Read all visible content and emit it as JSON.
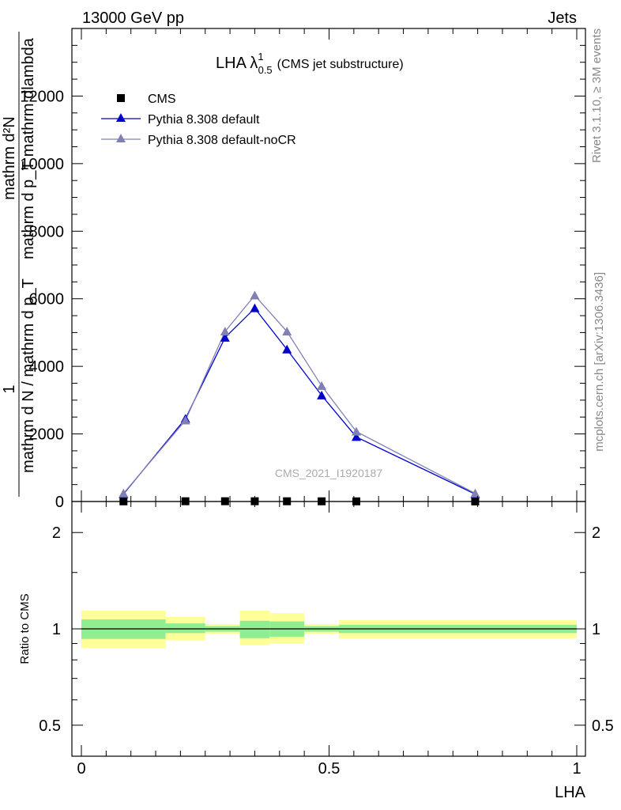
{
  "header": {
    "left": "13000 GeV pp",
    "right": "Jets"
  },
  "side": {
    "rivet": "Rivet 3.1.10, ≥ 3M events",
    "mcplots": "mcplots.cern.ch [arXiv:1306.3436]"
  },
  "chart_data": {
    "type": "line",
    "title_main": "LHA λ",
    "title_sup": "1",
    "title_sub": "0.5",
    "title_rest": "(CMS jet substructure)",
    "watermark": "CMS_2021_I1920187",
    "ylabel_top": "mathrm d²N",
    "ylabel_top2": "mathrm d p_T mathrm dlambda",
    "ylabel_bottom_one": "1",
    "ylabel_bottom": "mathrm d N / mathrm d p_T",
    "ratio_ylabel": "Ratio to CMS",
    "xlabel": "LHA",
    "xlim": [
      0,
      1
    ],
    "ylim": [
      0,
      14000
    ],
    "ratio_ylim": [
      0.4,
      2.5
    ],
    "x_ticks": [
      0,
      0.5,
      1
    ],
    "x_tick_labels": [
      "0",
      "0.5",
      "1"
    ],
    "y_ticks": [
      0,
      2000,
      4000,
      6000,
      8000,
      10000,
      12000
    ],
    "y_tick_labels": [
      "0",
      "2000",
      "4000",
      "6000",
      "8000",
      "10000",
      "12000"
    ],
    "ratio_ticks": [
      0.5,
      1,
      2
    ],
    "ratio_tick_labels": [
      "0.5",
      "1",
      "2"
    ],
    "legend": [
      "CMS",
      "Pythia 8.308 default",
      "Pythia 8.308 default-noCR"
    ],
    "series": [
      {
        "name": "CMS",
        "color": "#000000",
        "marker": "square",
        "x": [
          0.085,
          0.21,
          0.29,
          0.35,
          0.415,
          0.485,
          0.555,
          0.795
        ],
        "values": [
          5,
          8,
          8,
          8,
          7,
          6,
          5,
          3
        ]
      },
      {
        "name": "Pythia 8.308 default",
        "color": "#0000cc",
        "marker": "triangle",
        "x": [
          0.085,
          0.21,
          0.29,
          0.35,
          0.415,
          0.485,
          0.555,
          0.795
        ],
        "values": [
          220,
          2450,
          4850,
          5720,
          4500,
          3140,
          1910,
          220
        ]
      },
      {
        "name": "Pythia 8.308 default-noCR",
        "color": "#8080b3",
        "marker": "triangle",
        "x": [
          0.085,
          0.21,
          0.29,
          0.35,
          0.415,
          0.485,
          0.555,
          0.795
        ],
        "values": [
          240,
          2400,
          5030,
          6100,
          5030,
          3420,
          2070,
          240
        ]
      }
    ],
    "ratio_bands": [
      {
        "x0": 0.0,
        "x1": 0.17,
        "inner": [
          0.93,
          1.07
        ],
        "outer": [
          0.87,
          1.14
        ]
      },
      {
        "x0": 0.17,
        "x1": 0.25,
        "inner": [
          0.97,
          1.04
        ],
        "outer": [
          0.92,
          1.09
        ]
      },
      {
        "x0": 0.25,
        "x1": 0.32,
        "inner": [
          0.98,
          1.02
        ],
        "outer": [
          0.965,
          1.035
        ]
      },
      {
        "x0": 0.32,
        "x1": 0.38,
        "inner": [
          0.935,
          1.06
        ],
        "outer": [
          0.89,
          1.14
        ]
      },
      {
        "x0": 0.38,
        "x1": 0.45,
        "inner": [
          0.945,
          1.055
        ],
        "outer": [
          0.9,
          1.12
        ]
      },
      {
        "x0": 0.45,
        "x1": 0.52,
        "inner": [
          0.98,
          1.02
        ],
        "outer": [
          0.965,
          1.035
        ]
      },
      {
        "x0": 0.52,
        "x1": 1.0,
        "inner": [
          0.97,
          1.03
        ],
        "outer": [
          0.935,
          1.065
        ]
      }
    ],
    "band_colors": {
      "inner": "#90ee90",
      "outer": "#ffff99"
    }
  }
}
